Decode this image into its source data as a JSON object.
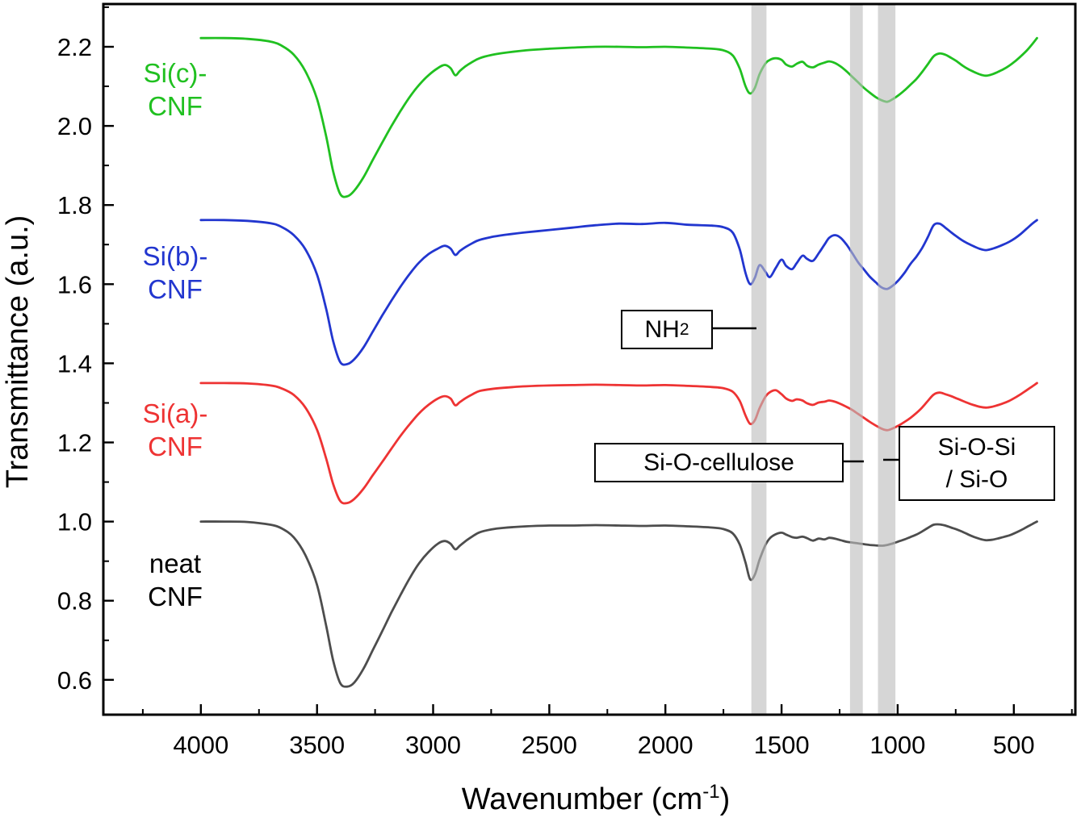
{
  "axis": {
    "y": "Transmittance (a.u.)",
    "x_main": "Wavenumber (cm",
    "x_sup": "-1",
    "x_close": ")"
  },
  "annotations": {
    "nh2_main": "NH",
    "nh2_sub": "2",
    "cellulose": "Si-O-cellulose",
    "siosi1": "Si-O-Si",
    "siosi2": "/ Si-O"
  },
  "chart_data": {
    "type": "line",
    "title": "",
    "xlabel": "Wavenumber (cm-1)",
    "ylabel": "Transmittance (a.u.)",
    "xlim": [
      4420,
      235
    ],
    "ylim": [
      0.512,
      2.308
    ],
    "x_reversed": true,
    "grid": false,
    "legend_position": "inline-left-curve-labels",
    "x_ticks": [
      4000,
      3500,
      3000,
      2500,
      2000,
      1500,
      1000,
      500
    ],
    "y_ticks": [
      0.6,
      0.8,
      1.0,
      1.2,
      1.4,
      1.6,
      1.8,
      2.0,
      2.2
    ],
    "highlight_bands": [
      {
        "x_from": 1630,
        "x_to": 1565,
        "label": "NH2"
      },
      {
        "x_from": 1205,
        "x_to": 1150,
        "label": "Si-O-cellulose"
      },
      {
        "x_from": 1085,
        "x_to": 1010,
        "label": "Si-O-Si / Si-O"
      }
    ],
    "x": [
      4000,
      3900,
      3800,
      3700,
      3650,
      3600,
      3550,
      3500,
      3460,
      3430,
      3400,
      3370,
      3340,
      3300,
      3260,
      3220,
      3180,
      3140,
      3100,
      3060,
      3020,
      2980,
      2950,
      2925,
      2905,
      2885,
      2860,
      2830,
      2800,
      2750,
      2700,
      2600,
      2500,
      2400,
      2300,
      2200,
      2100,
      2000,
      1900,
      1800,
      1750,
      1710,
      1680,
      1655,
      1635,
      1615,
      1595,
      1570,
      1550,
      1525,
      1500,
      1480,
      1455,
      1435,
      1410,
      1390,
      1365,
      1340,
      1315,
      1295,
      1270,
      1245,
      1220,
      1195,
      1170,
      1145,
      1120,
      1095,
      1070,
      1045,
      1020,
      995,
      970,
      945,
      920,
      895,
      870,
      845,
      820,
      795,
      770,
      745,
      720,
      695,
      670,
      645,
      620,
      595,
      570,
      545,
      520,
      495,
      470,
      445,
      420,
      400
    ],
    "series": [
      {
        "name": "Si(c)-CNF",
        "label1": "Si(c)-",
        "label2": "CNF",
        "color": "#20C020",
        "label_color": "#20C020",
        "y": [
          2.222,
          2.222,
          2.22,
          2.213,
          2.202,
          2.18,
          2.138,
          2.068,
          1.972,
          1.884,
          1.828,
          1.822,
          1.836,
          1.87,
          1.914,
          1.957,
          1.999,
          2.038,
          2.074,
          2.104,
          2.128,
          2.146,
          2.154,
          2.146,
          2.128,
          2.139,
          2.151,
          2.162,
          2.171,
          2.179,
          2.184,
          2.191,
          2.195,
          2.198,
          2.2,
          2.2,
          2.199,
          2.2,
          2.198,
          2.195,
          2.191,
          2.178,
          2.145,
          2.1,
          2.082,
          2.096,
          2.13,
          2.157,
          2.167,
          2.171,
          2.167,
          2.155,
          2.15,
          2.157,
          2.162,
          2.152,
          2.148,
          2.155,
          2.16,
          2.163,
          2.159,
          2.15,
          2.138,
          2.124,
          2.11,
          2.096,
          2.084,
          2.073,
          2.065,
          2.061,
          2.068,
          2.078,
          2.09,
          2.104,
          2.118,
          2.136,
          2.156,
          2.176,
          2.183,
          2.18,
          2.172,
          2.163,
          2.152,
          2.143,
          2.136,
          2.13,
          2.127,
          2.13,
          2.136,
          2.143,
          2.152,
          2.163,
          2.176,
          2.19,
          2.207,
          2.222
        ]
      },
      {
        "name": "Si(b)-CNF",
        "label1": "Si(b)-",
        "label2": "CNF",
        "color": "#2236CF",
        "label_color": "#2236CF",
        "y": [
          1.762,
          1.762,
          1.76,
          1.754,
          1.744,
          1.724,
          1.688,
          1.624,
          1.536,
          1.455,
          1.403,
          1.398,
          1.41,
          1.44,
          1.48,
          1.52,
          1.558,
          1.594,
          1.627,
          1.655,
          1.676,
          1.69,
          1.697,
          1.69,
          1.674,
          1.684,
          1.694,
          1.704,
          1.712,
          1.719,
          1.724,
          1.731,
          1.737,
          1.743,
          1.749,
          1.753,
          1.752,
          1.755,
          1.75,
          1.748,
          1.744,
          1.73,
          1.688,
          1.628,
          1.6,
          1.616,
          1.648,
          1.632,
          1.618,
          1.641,
          1.662,
          1.646,
          1.638,
          1.653,
          1.672,
          1.664,
          1.659,
          1.678,
          1.7,
          1.717,
          1.724,
          1.717,
          1.7,
          1.678,
          1.655,
          1.637,
          1.619,
          1.605,
          1.592,
          1.588,
          1.597,
          1.611,
          1.629,
          1.651,
          1.669,
          1.691,
          1.719,
          1.749,
          1.753,
          1.743,
          1.731,
          1.72,
          1.71,
          1.702,
          1.695,
          1.689,
          1.686,
          1.689,
          1.694,
          1.7,
          1.707,
          1.716,
          1.727,
          1.74,
          1.753,
          1.762
        ]
      },
      {
        "name": "Si(a)-CNF",
        "label1": "Si(a)-",
        "label2": "CNF",
        "color": "#EE3333",
        "label_color": "#EE3333",
        "y": [
          1.35,
          1.35,
          1.349,
          1.344,
          1.336,
          1.32,
          1.288,
          1.232,
          1.158,
          1.094,
          1.052,
          1.047,
          1.057,
          1.083,
          1.117,
          1.15,
          1.184,
          1.217,
          1.247,
          1.274,
          1.295,
          1.311,
          1.317,
          1.311,
          1.294,
          1.302,
          1.312,
          1.322,
          1.33,
          1.335,
          1.338,
          1.342,
          1.344,
          1.345,
          1.346,
          1.345,
          1.344,
          1.345,
          1.343,
          1.34,
          1.337,
          1.328,
          1.305,
          1.268,
          1.247,
          1.256,
          1.286,
          1.315,
          1.327,
          1.332,
          1.322,
          1.311,
          1.305,
          1.309,
          1.306,
          1.299,
          1.295,
          1.301,
          1.303,
          1.306,
          1.303,
          1.297,
          1.29,
          1.282,
          1.272,
          1.262,
          1.252,
          1.243,
          1.235,
          1.231,
          1.236,
          1.243,
          1.252,
          1.262,
          1.274,
          1.288,
          1.305,
          1.321,
          1.326,
          1.322,
          1.317,
          1.311,
          1.305,
          1.299,
          1.294,
          1.29,
          1.288,
          1.29,
          1.294,
          1.299,
          1.305,
          1.313,
          1.322,
          1.332,
          1.342,
          1.35
        ]
      },
      {
        "name": "neat CNF",
        "label1": "neat",
        "label2": "CNF",
        "color": "#4D4D4D",
        "label_color": "#000000",
        "y": [
          1.0,
          1.0,
          0.999,
          0.992,
          0.982,
          0.96,
          0.915,
          0.84,
          0.735,
          0.648,
          0.592,
          0.583,
          0.593,
          0.628,
          0.675,
          0.722,
          0.77,
          0.815,
          0.858,
          0.895,
          0.923,
          0.944,
          0.951,
          0.944,
          0.93,
          0.939,
          0.951,
          0.963,
          0.973,
          0.98,
          0.984,
          0.988,
          0.99,
          0.99,
          0.991,
          0.99,
          0.989,
          0.99,
          0.988,
          0.985,
          0.981,
          0.97,
          0.942,
          0.896,
          0.854,
          0.866,
          0.903,
          0.94,
          0.958,
          0.968,
          0.972,
          0.967,
          0.961,
          0.959,
          0.962,
          0.958,
          0.952,
          0.957,
          0.955,
          0.959,
          0.957,
          0.953,
          0.949,
          0.947,
          0.945,
          0.943,
          0.941,
          0.94,
          0.939,
          0.941,
          0.945,
          0.95,
          0.955,
          0.961,
          0.967,
          0.975,
          0.984,
          0.992,
          0.993,
          0.99,
          0.985,
          0.98,
          0.974,
          0.967,
          0.961,
          0.956,
          0.953,
          0.954,
          0.957,
          0.961,
          0.965,
          0.971,
          0.978,
          0.986,
          0.994,
          1.0
        ]
      }
    ]
  }
}
